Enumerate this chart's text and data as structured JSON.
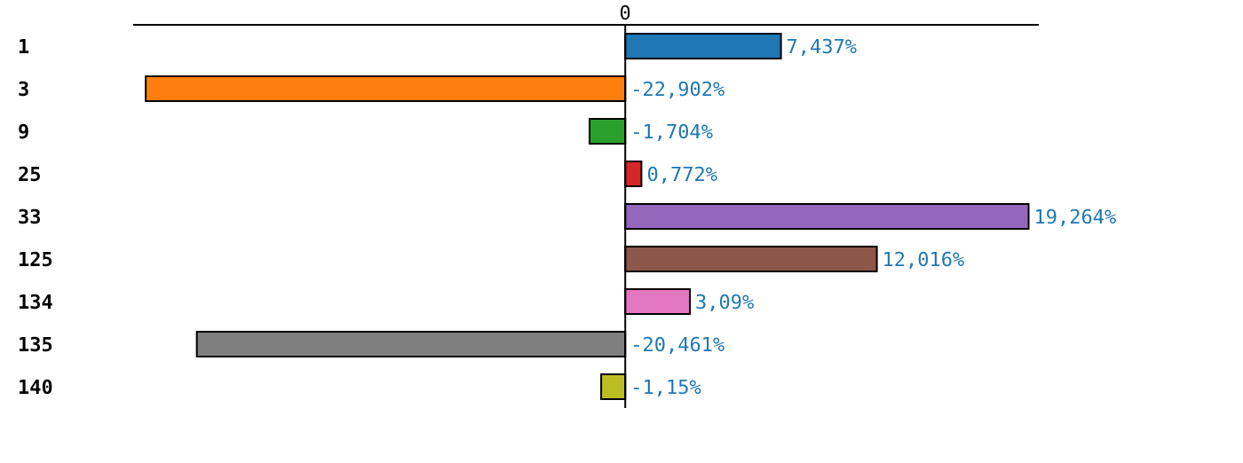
{
  "chart_data": {
    "type": "bar",
    "orientation": "horizontal",
    "categories": [
      "1",
      "3",
      "9",
      "25",
      "33",
      "125",
      "134",
      "135",
      "140"
    ],
    "values": [
      7.437,
      -22.902,
      -1.704,
      0.772,
      19.264,
      12.016,
      3.09,
      -20.461,
      -1.15
    ],
    "colors": [
      "#1f77b4",
      "#ff7f0e",
      "#2ca02c",
      "#d62728",
      "#9467bd",
      "#8c564b",
      "#e377c2",
      "#7f7f7f",
      "#bcbd22"
    ],
    "value_labels": [
      "7,437%",
      "-22,902%",
      "-1,704%",
      "0,772%",
      "19,264%",
      "12,016%",
      "3,09%",
      "-20,461%",
      "-1,15%"
    ],
    "xlim": [
      -23.5,
      19.75
    ],
    "ref_lines": [
      {
        "axis": "x",
        "value": 0,
        "label": "0",
        "color": "#000000"
      }
    ],
    "grid": false
  }
}
